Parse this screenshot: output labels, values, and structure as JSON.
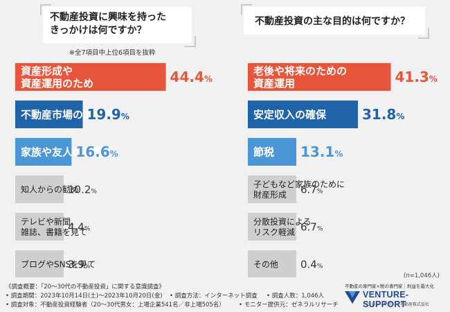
{
  "colors": {
    "top1": "#e8553a",
    "top2": "#1f63a8",
    "top3": "#4b96d6",
    "other": "#cfcfcf",
    "top_text": "#ffffff",
    "other_text": "#222222",
    "pct_top1": "#e8553a",
    "pct_top2": "#1f63a8",
    "pct_top3": "#4b96d6",
    "pct_other": "#333333"
  },
  "chart_data": [
    {
      "type": "bar",
      "title": "不動産投資に興味を持った\nきっかけは何ですか？",
      "note": "※全7項目中上位6項目を抜粋",
      "categories": [
        "資産形成や\n資産運用のため",
        "不動産市場の成長性",
        "家族や友人の影響",
        "知人からの勧め",
        "テレビや新聞、\n雑誌、書籍を見て",
        "ブログやSNSを見て"
      ],
      "values": [
        44.4,
        19.9,
        16.6,
        10.2,
        4.4,
        3.9
      ],
      "value_labels": [
        "44.4%",
        "19.9%",
        "16.6%",
        "10.2%",
        "4.4%",
        "3.9%"
      ]
    },
    {
      "type": "bar",
      "title": "不動産投資の主な目的は何ですか？",
      "categories": [
        "老後や将来のための\n資産運用",
        "安定収入の確保",
        "節税",
        "子どもなど家族のために\n財産形成",
        "分散投資による\nリスク軽減",
        "その他"
      ],
      "values": [
        41.3,
        31.8,
        13.1,
        6.7,
        6.7,
        0.4
      ],
      "value_labels": [
        "41.3%",
        "31.8%",
        "13.1%",
        "6.7%",
        "6.7%",
        "0.4%"
      ]
    }
  ],
  "sample_size": "(n=1,046人)",
  "footer": {
    "line1": "《調査概要：「20～30代の不動産投資」に関する意識調査》",
    "period": "• 調査期間：2023年10月14日(土)～2023年10月20日(金)",
    "method": "• 調査方法：インターネット調査",
    "count": "• 調査人数：1,046人",
    "target": "• 調査対象：不動産投資経験者（20～30代男女：上場企業541名／非上場505名）",
    "provider": "• モニター提供元：ゼネラルリサーチ"
  },
  "logo": {
    "tagline": "不動産の専門家×税の専門家｜利益を最大化",
    "name": "VENTURE-SUPPORT",
    "sub": "ベンチャーサポート不動産株式会社"
  }
}
